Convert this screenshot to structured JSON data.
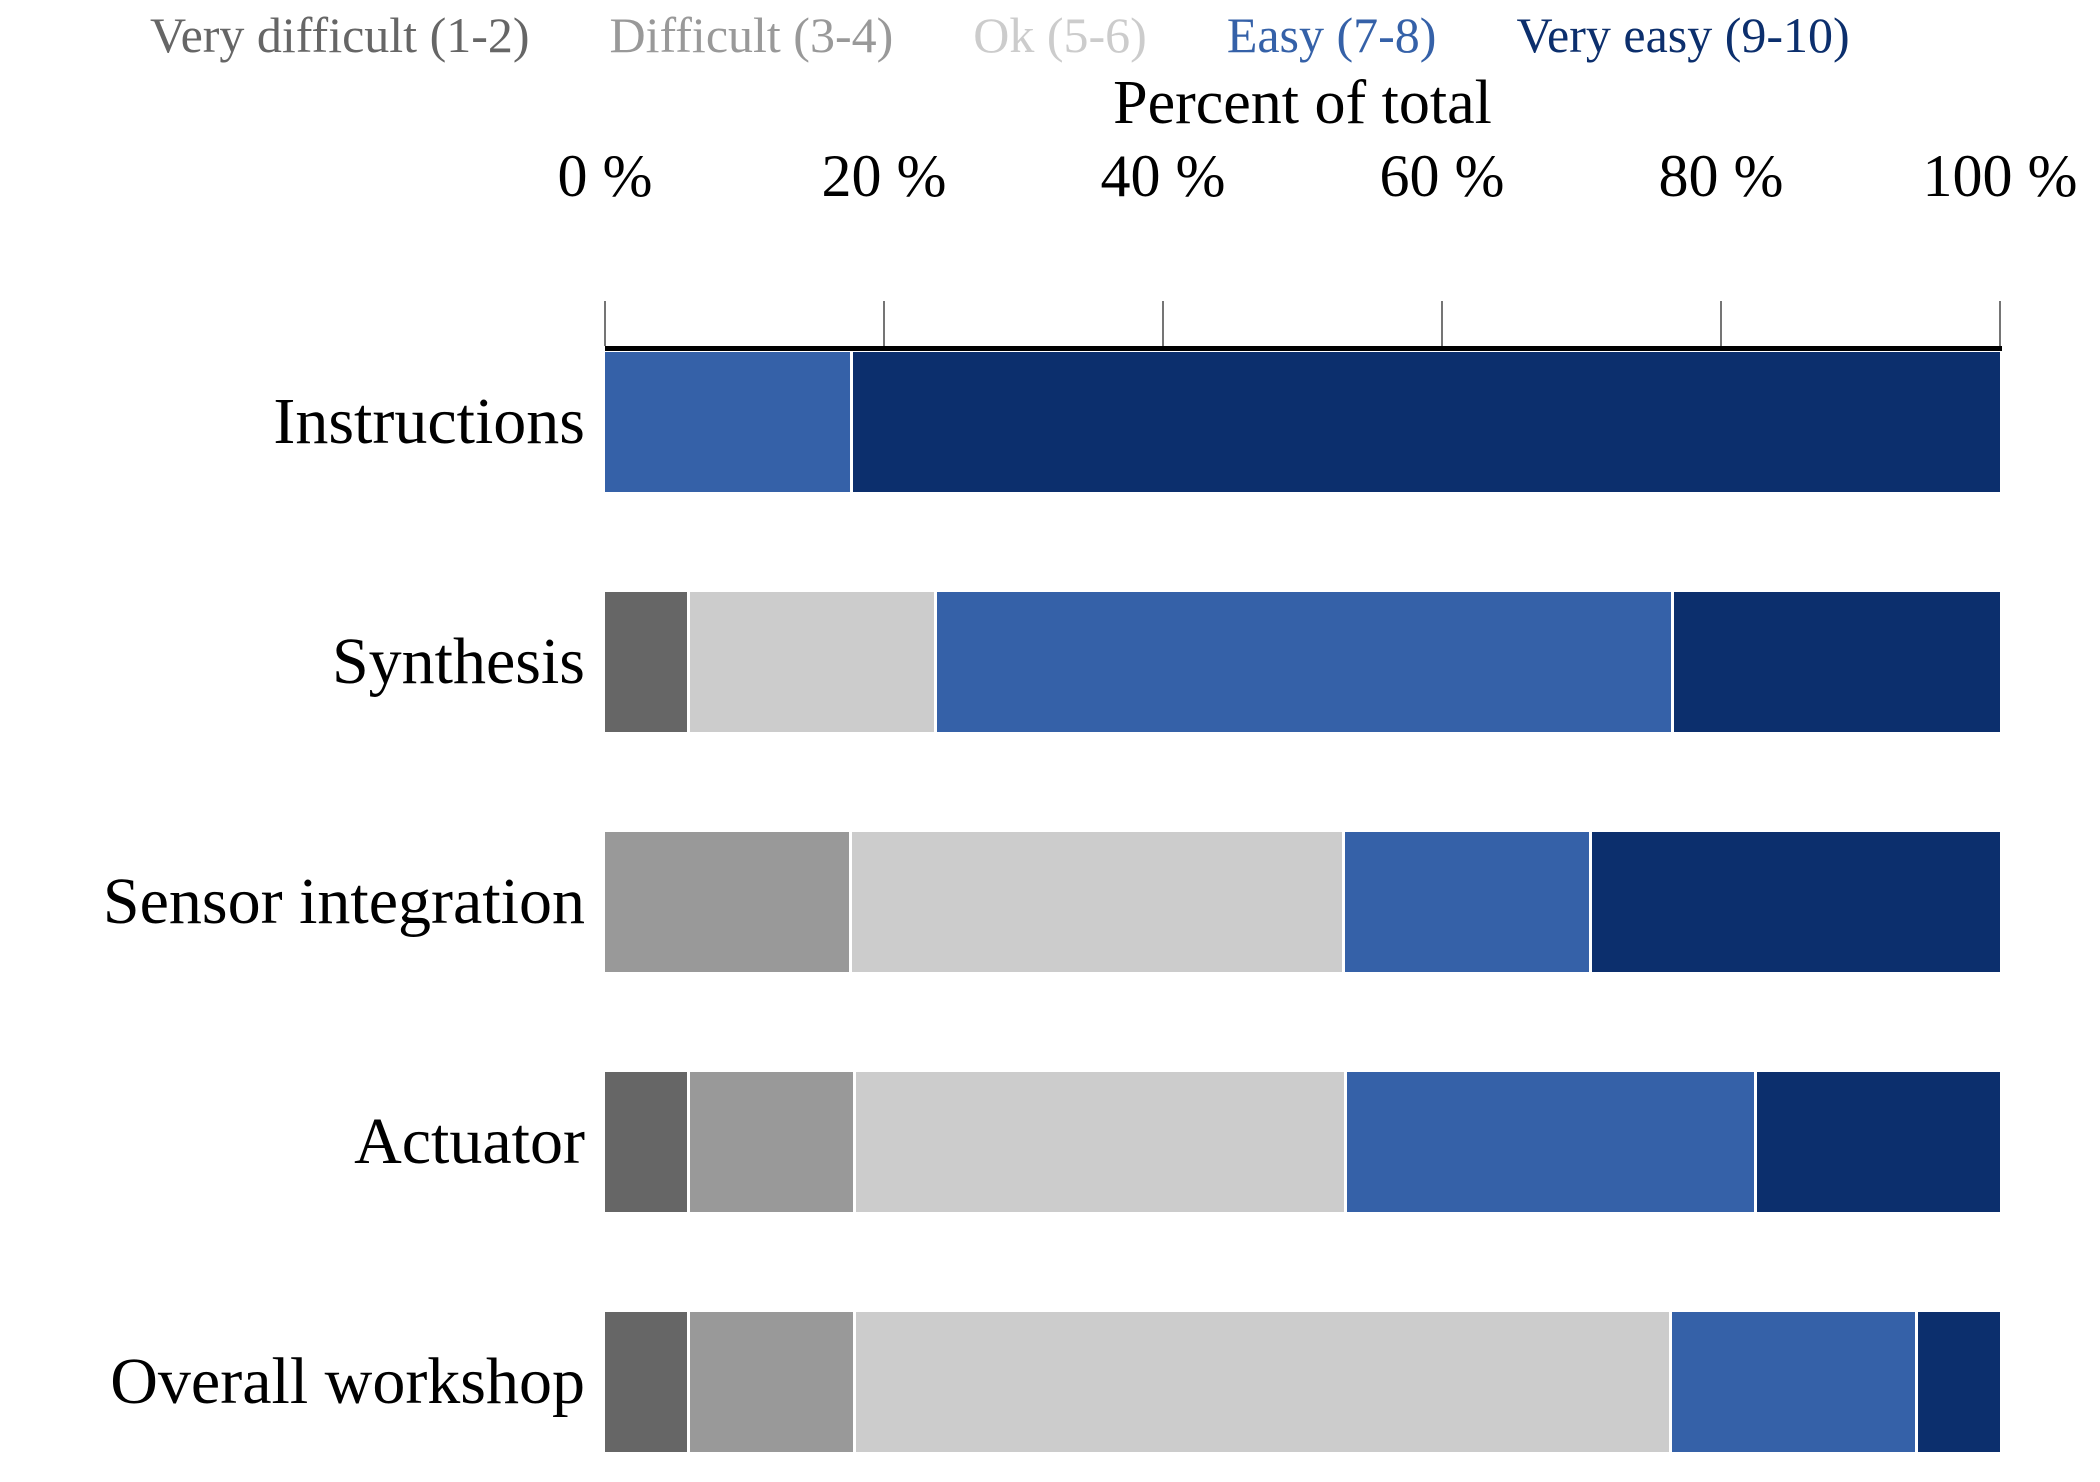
{
  "chart_data": {
    "type": "bar",
    "orientation": "horizontal",
    "stacked": true,
    "unit": "percent",
    "title": "Percent of total",
    "categories": [
      "Instructions",
      "Synthesis",
      "Sensor integration",
      "Actuator",
      "Overall workshop"
    ],
    "series": [
      {
        "name": "Very difficult (1-2)",
        "color": "#666666",
        "values": [
          0,
          5.9,
          0,
          5.9,
          5.9
        ]
      },
      {
        "name": "Difficult (3-4)",
        "color": "#999999",
        "values": [
          0,
          0,
          17.6,
          11.8,
          11.8
        ]
      },
      {
        "name": "Ok (5-6)",
        "color": "#cccccc",
        "values": [
          0,
          17.6,
          35.3,
          35.3,
          58.8
        ]
      },
      {
        "name": "Easy (7-8)",
        "color": "#3561a8",
        "values": [
          17.6,
          52.9,
          17.6,
          29.4,
          17.6
        ]
      },
      {
        "name": "Very easy (9-10)",
        "color": "#0c2f6d",
        "values": [
          82.4,
          23.5,
          29.4,
          17.6,
          5.9
        ]
      }
    ],
    "x_ticks": [
      "0 %",
      "20 %",
      "40 %",
      "60 %",
      "80 %",
      "100 %"
    ],
    "x_tick_values": [
      0,
      20,
      40,
      60,
      80,
      100
    ],
    "xlim": [
      0,
      100
    ],
    "legend_position": "top",
    "grid": false
  }
}
